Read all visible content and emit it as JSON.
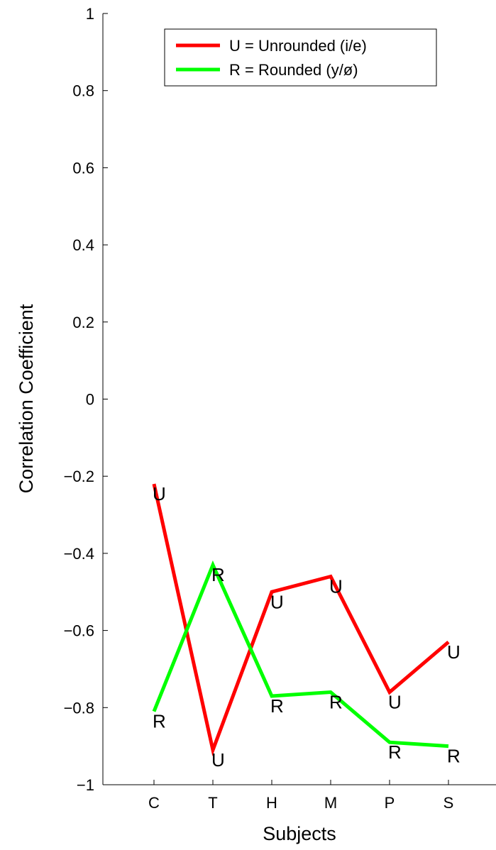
{
  "chart_data": {
    "type": "line",
    "title": "",
    "xlabel": "Subjects",
    "ylabel": "Correlation Coefficient",
    "categories": [
      "C",
      "T",
      "H",
      "M",
      "P",
      "S"
    ],
    "ylim": [
      -1,
      1
    ],
    "yticks": [
      -1,
      -0.8,
      -0.6,
      -0.4,
      -0.2,
      0,
      0.2,
      0.4,
      0.6,
      0.8,
      1
    ],
    "ytick_labels": [
      "−1",
      "−0.8",
      "−0.6",
      "−0.4",
      "−0.2",
      "0",
      "0.2",
      "0.4",
      "0.6",
      "0.8",
      "1"
    ],
    "grid": false,
    "legend_position": "top-right",
    "series": [
      {
        "name": "U = Unrounded (i/e)",
        "marker_label": "U",
        "color": "#ff0000",
        "values": [
          -0.22,
          -0.91,
          -0.5,
          -0.46,
          -0.76,
          -0.63
        ]
      },
      {
        "name": "R = Rounded (y/ø)",
        "marker_label": "R",
        "color": "#00ff00",
        "values": [
          -0.81,
          -0.43,
          -0.77,
          -0.76,
          -0.89,
          -0.9
        ]
      }
    ]
  }
}
